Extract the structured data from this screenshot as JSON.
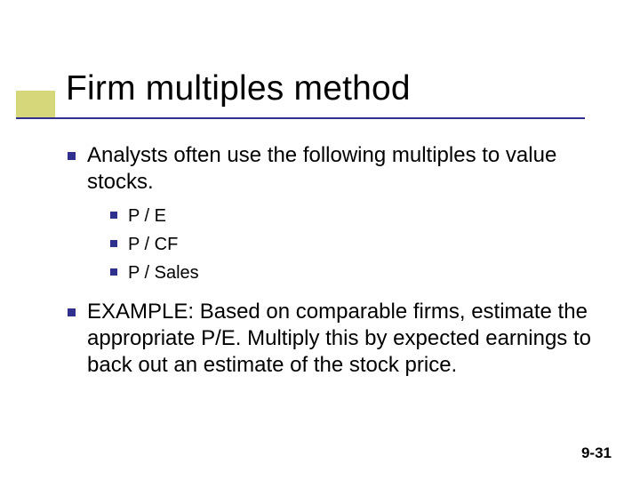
{
  "colors": {
    "accent": "#d6d67a",
    "bullet": "#30308e",
    "rule": "#30308e",
    "text": "#000000",
    "background": "#ffffff"
  },
  "title": "Firm multiples method",
  "body": {
    "items": [
      {
        "text": "Analysts often use the following multiples to value stocks.",
        "sub": [
          {
            "text": "P / E"
          },
          {
            "text": "P / CF"
          },
          {
            "text": "P / Sales"
          }
        ]
      },
      {
        "text": "EXAMPLE: Based on comparable firms, estimate the appropriate P/E.  Multiply this by expected earnings to back out an estimate of the stock price."
      }
    ]
  },
  "footer": "9-31"
}
